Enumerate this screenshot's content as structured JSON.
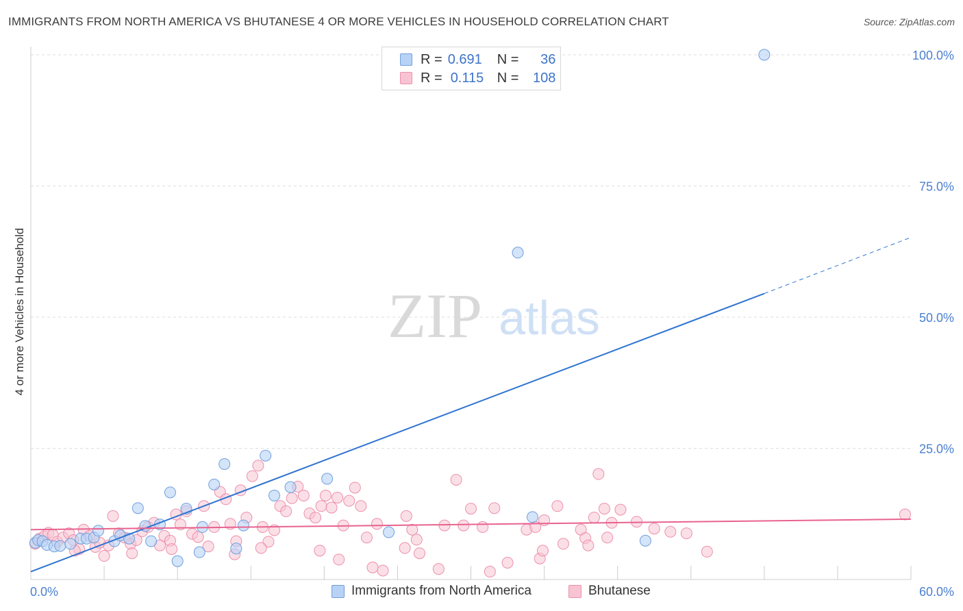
{
  "title": "IMMIGRANTS FROM NORTH AMERICA VS BHUTANESE 4 OR MORE VEHICLES IN HOUSEHOLD CORRELATION CHART",
  "source": "Source: ZipAtlas.com",
  "watermark": {
    "zip": "ZIP",
    "atlas": "atlas"
  },
  "legend_top": {
    "rows": [
      {
        "r_label": "R =",
        "r_value": "0.691",
        "n_label": "N =",
        "n_value": "36"
      },
      {
        "r_label": "R =",
        "r_value": "0.115",
        "n_label": "N =",
        "n_value": "108"
      }
    ]
  },
  "bottom_legend": [
    "Immigrants from North America",
    "Bhutanese"
  ],
  "colors": {
    "blue_fill": "#b8d2f5",
    "blue_stroke": "#6f9fdc",
    "blue_line": "#2f74d0",
    "pink_fill": "#f8c4d4",
    "pink_stroke": "#ec8fac",
    "pink_line": "#e8628f",
    "tick": "#4a7fcf",
    "grid": "#dddddd"
  },
  "chart_data": {
    "type": "scatter",
    "title": "IMMIGRANTS FROM NORTH AMERICA VS BHUTANESE 4 OR MORE VEHICLES IN HOUSEHOLD CORRELATION CHART",
    "xlabel": "",
    "ylabel": "4 or more Vehicles in Household",
    "xlim": [
      0,
      60
    ],
    "ylim": [
      0,
      100
    ],
    "x_tick_labels": [
      "0.0%",
      "60.0%"
    ],
    "y_ticks": [
      25,
      50,
      75,
      100
    ],
    "y_tick_labels": [
      "25.0%",
      "50.0%",
      "75.0%",
      "100.0%"
    ],
    "grid": true,
    "series": [
      {
        "name": "Immigrants from North America",
        "color": "#b8d2f5",
        "trend": {
          "x": [
            0,
            50
          ],
          "y": [
            1.5,
            54.5
          ],
          "dashed_to": [
            60,
            65.2
          ]
        },
        "points": [
          [
            0.3,
            7.0
          ],
          [
            0.5,
            7.5
          ],
          [
            0.8,
            7.3
          ],
          [
            1.1,
            6.6
          ],
          [
            1.6,
            6.3
          ],
          [
            2.0,
            6.4
          ],
          [
            2.7,
            6.8
          ],
          [
            3.4,
            7.8
          ],
          [
            3.8,
            7.8
          ],
          [
            4.3,
            8.0
          ],
          [
            4.6,
            9.3
          ],
          [
            5.7,
            7.3
          ],
          [
            6.1,
            8.4
          ],
          [
            6.7,
            7.8
          ],
          [
            7.3,
            13.6
          ],
          [
            7.8,
            10.2
          ],
          [
            8.2,
            7.3
          ],
          [
            8.8,
            10.5
          ],
          [
            9.5,
            16.6
          ],
          [
            10.0,
            3.5
          ],
          [
            10.6,
            13.5
          ],
          [
            11.5,
            5.2
          ],
          [
            11.7,
            10.0
          ],
          [
            12.5,
            18.1
          ],
          [
            13.2,
            22.0
          ],
          [
            14.0,
            5.9
          ],
          [
            14.5,
            10.3
          ],
          [
            16.0,
            23.6
          ],
          [
            16.6,
            16.0
          ],
          [
            17.7,
            17.6
          ],
          [
            20.2,
            19.2
          ],
          [
            24.4,
            9.0
          ],
          [
            33.2,
            62.3
          ],
          [
            34.2,
            11.9
          ],
          [
            41.9,
            7.4
          ],
          [
            50.0,
            100.0
          ]
        ]
      },
      {
        "name": "Bhutanese",
        "color": "#f8c4d4",
        "trend": {
          "x": [
            0,
            60
          ],
          "y": [
            9.5,
            11.5
          ]
        },
        "points": [
          [
            0.3,
            6.8
          ],
          [
            0.6,
            7.8
          ],
          [
            0.9,
            8.2
          ],
          [
            1.2,
            8.9
          ],
          [
            1.5,
            8.5
          ],
          [
            1.8,
            7.2
          ],
          [
            2.2,
            8.0
          ],
          [
            2.6,
            8.8
          ],
          [
            2.9,
            7.5
          ],
          [
            3.3,
            5.8
          ],
          [
            3.6,
            9.5
          ],
          [
            4.0,
            8.3
          ],
          [
            4.4,
            6.2
          ],
          [
            4.7,
            7.0
          ],
          [
            5.0,
            4.5
          ],
          [
            5.3,
            6.5
          ],
          [
            5.6,
            12.1
          ],
          [
            6.0,
            8.8
          ],
          [
            6.4,
            8.0
          ],
          [
            6.8,
            6.8
          ],
          [
            7.2,
            7.5
          ],
          [
            7.6,
            9.2
          ],
          [
            8.0,
            10.0
          ],
          [
            8.4,
            10.8
          ],
          [
            8.8,
            6.5
          ],
          [
            9.1,
            8.3
          ],
          [
            9.5,
            7.4
          ],
          [
            9.9,
            12.4
          ],
          [
            10.2,
            10.5
          ],
          [
            10.6,
            13.0
          ],
          [
            11.0,
            8.7
          ],
          [
            11.4,
            8.1
          ],
          [
            11.8,
            14.0
          ],
          [
            12.1,
            6.3
          ],
          [
            12.5,
            10.0
          ],
          [
            12.9,
            16.7
          ],
          [
            13.3,
            15.3
          ],
          [
            13.6,
            10.6
          ],
          [
            14.0,
            7.3
          ],
          [
            14.3,
            17.0
          ],
          [
            14.7,
            11.8
          ],
          [
            15.1,
            19.7
          ],
          [
            15.5,
            21.7
          ],
          [
            15.8,
            10.0
          ],
          [
            16.2,
            7.2
          ],
          [
            16.6,
            9.4
          ],
          [
            17.0,
            14.0
          ],
          [
            17.4,
            13.0
          ],
          [
            17.8,
            15.5
          ],
          [
            18.2,
            17.7
          ],
          [
            18.6,
            16.0
          ],
          [
            19.0,
            12.6
          ],
          [
            19.4,
            11.8
          ],
          [
            19.8,
            14.0
          ],
          [
            20.1,
            16.0
          ],
          [
            20.5,
            13.7
          ],
          [
            20.9,
            15.6
          ],
          [
            21.3,
            10.3
          ],
          [
            21.7,
            15.0
          ],
          [
            22.1,
            17.5
          ],
          [
            22.5,
            14.0
          ],
          [
            22.9,
            8.0
          ],
          [
            23.3,
            2.3
          ],
          [
            23.6,
            10.6
          ],
          [
            24.0,
            1.7
          ],
          [
            25.5,
            6.0
          ],
          [
            25.6,
            12.1
          ],
          [
            26.0,
            9.5
          ],
          [
            26.3,
            7.6
          ],
          [
            27.8,
            2.0
          ],
          [
            28.2,
            10.3
          ],
          [
            29.0,
            19.0
          ],
          [
            29.5,
            10.3
          ],
          [
            30.0,
            13.5
          ],
          [
            30.8,
            10.0
          ],
          [
            31.3,
            1.5
          ],
          [
            31.6,
            13.6
          ],
          [
            32.5,
            3.2
          ],
          [
            33.8,
            9.5
          ],
          [
            34.4,
            10.0
          ],
          [
            34.7,
            4.0
          ],
          [
            35.0,
            11.3
          ],
          [
            35.9,
            14.0
          ],
          [
            36.3,
            6.8
          ],
          [
            37.5,
            9.5
          ],
          [
            37.8,
            7.9
          ],
          [
            38.4,
            11.8
          ],
          [
            38.7,
            20.1
          ],
          [
            39.1,
            13.5
          ],
          [
            39.3,
            8.0
          ],
          [
            39.6,
            10.8
          ],
          [
            40.2,
            13.3
          ],
          [
            41.3,
            11.0
          ],
          [
            42.5,
            9.7
          ],
          [
            43.6,
            9.1
          ],
          [
            44.7,
            8.8
          ],
          [
            46.1,
            5.3
          ],
          [
            59.6,
            12.4
          ],
          [
            3.0,
            5.5
          ],
          [
            6.9,
            5.0
          ],
          [
            9.6,
            5.8
          ],
          [
            15.7,
            6.0
          ],
          [
            19.7,
            5.5
          ],
          [
            26.5,
            5.0
          ],
          [
            34.9,
            5.5
          ],
          [
            38.0,
            6.5
          ],
          [
            13.9,
            4.8
          ],
          [
            21.0,
            3.8
          ]
        ]
      }
    ]
  }
}
